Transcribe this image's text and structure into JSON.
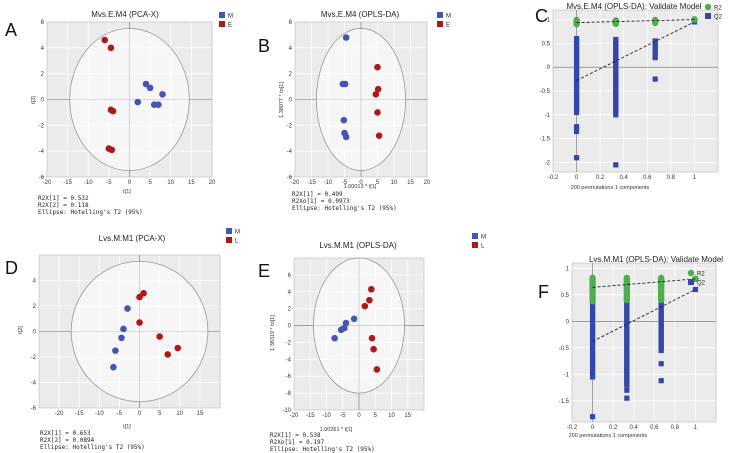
{
  "colors": {
    "blue": "#4355b8",
    "red": "#b01818",
    "green": "#4cae4c",
    "dark_blue": "#3446a8",
    "plot_bg": "#ebebeb",
    "grid": "#ffffff"
  },
  "chart_data": [
    {
      "id": "A",
      "letter": "A",
      "type": "scatter",
      "subtype": "score",
      "title": "Mvs.E.M4 (PCA-X)",
      "xlabel": "t[1]",
      "ylabel": "t[2]",
      "xlim": [
        -20,
        20
      ],
      "ylim": [
        -6,
        6
      ],
      "xticks": [
        -20,
        -15,
        -10,
        -5,
        0,
        5,
        10,
        15,
        20
      ],
      "yticks": [
        -6,
        -4,
        -2,
        0,
        2,
        4,
        6
      ],
      "ellipse": [
        14.5,
        5.5
      ],
      "legend": [
        "M",
        "E"
      ],
      "series": [
        {
          "name": "M",
          "color": "blue",
          "points": [
            [
              4,
              1.2
            ],
            [
              5,
              0.9
            ],
            [
              6,
              -0.4
            ],
            [
              7,
              -0.4
            ],
            [
              8,
              0.4
            ],
            [
              2,
              -0.2
            ]
          ]
        },
        {
          "name": "E",
          "color": "red",
          "points": [
            [
              -6,
              4.6
            ],
            [
              -4.5,
              4.0
            ],
            [
              -4.5,
              -0.8
            ],
            [
              -4,
              -0.9
            ],
            [
              -5,
              -3.8
            ],
            [
              -4.3,
              -3.9
            ]
          ]
        }
      ],
      "footer": [
        "R2X[1] = 0.532",
        "R2X[2] = 0.118",
        "Ellipse: Hotelling's T2 (95%)"
      ]
    },
    {
      "id": "B",
      "letter": "B",
      "type": "scatter",
      "subtype": "score",
      "title": "Mvs.E.M4 (OPLS-DA)",
      "xlabel": "1.00013 * t[1]",
      "ylabel": "1.38077 * to[1]",
      "xlim": [
        -20,
        20
      ],
      "ylim": [
        -6,
        6
      ],
      "xticks": [
        -20,
        -15,
        -10,
        -5,
        0,
        5,
        10,
        15,
        20
      ],
      "yticks": [
        -6,
        -4,
        -2,
        0,
        2,
        4,
        6
      ],
      "ellipse": [
        13.5,
        5.5
      ],
      "legend": [
        "M",
        "E"
      ],
      "series": [
        {
          "name": "M",
          "color": "blue",
          "points": [
            [
              -4.5,
              4.8
            ],
            [
              -5.5,
              1.2
            ],
            [
              -4.8,
              1.2
            ],
            [
              -5.2,
              -1.6
            ],
            [
              -5,
              -2.6
            ],
            [
              -4.5,
              -2.9
            ]
          ]
        },
        {
          "name": "E",
          "color": "red",
          "points": [
            [
              5,
              2.5
            ],
            [
              4.5,
              0.4
            ],
            [
              5.2,
              0.8
            ],
            [
              5,
              -1.0
            ],
            [
              5.5,
              -2.8
            ]
          ]
        }
      ],
      "footer": [
        "R2X[1] = 0.499",
        "R2Xo[1] = 0.0973",
        "Ellipse: Hotelling's T2 (95%)"
      ]
    },
    {
      "id": "C",
      "letter": "C",
      "type": "scatter",
      "subtype": "permutation",
      "title": "Mvs.E.M4 (OPLS-DA): Validate Model",
      "xlabel": "200 permutations 1 components",
      "xlim": [
        -0.2,
        1.2
      ],
      "ylim": [
        -2.2,
        1.2
      ],
      "xticks": [
        -0.2,
        0,
        0.2,
        0.4,
        0.6,
        0.8,
        1
      ],
      "yticks": [
        -2,
        -1.5,
        -1,
        -0.5,
        0,
        0.5,
        1
      ],
      "legend": [
        "R2",
        "Q2"
      ],
      "xs": [
        0,
        0.333,
        0.667
      ],
      "r2": {
        "intercept": 0.935,
        "end": 1.0,
        "cols": [
          [
            0.99,
            0.9
          ],
          [
            0.98,
            0.91
          ],
          [
            0.99,
            0.93
          ]
        ]
      },
      "q2": {
        "intercept": -0.28,
        "end": 0.95,
        "bars": [
          [
            0.6,
            -0.95
          ],
          [
            0.58,
            -1.0
          ],
          [
            0.55,
            0.2
          ]
        ],
        "outliers": [
          [
            0,
            -1.25
          ],
          [
            0,
            -1.35
          ],
          [
            0,
            -1.9
          ],
          [
            0.333,
            -2.05
          ],
          [
            0.667,
            -0.25
          ]
        ]
      }
    },
    {
      "id": "D",
      "letter": "D",
      "type": "scatter",
      "subtype": "score",
      "title": "Lvs.M.M1 (PCA-X)",
      "xlabel": "t[1]",
      "ylabel": "t[2]",
      "xlim": [
        -25,
        20
      ],
      "ylim": [
        -6,
        6
      ],
      "xticks": [
        -20,
        -15,
        -10,
        -5,
        0,
        5,
        10,
        15
      ],
      "yticks": [
        -6,
        -4,
        -2,
        0,
        2,
        4
      ],
      "ellipse": [
        17,
        5.5
      ],
      "legend": [
        "M",
        "L"
      ],
      "series": [
        {
          "name": "M",
          "color": "blue",
          "points": [
            [
              -3,
              1.8
            ],
            [
              -4,
              0.2
            ],
            [
              -4.5,
              -0.5
            ],
            [
              -6,
              -1.5
            ],
            [
              -6.5,
              -2.8
            ]
          ]
        },
        {
          "name": "L",
          "color": "red",
          "points": [
            [
              0,
              2.7
            ],
            [
              1,
              3.0
            ],
            [
              0,
              0.7
            ],
            [
              5,
              -0.4
            ],
            [
              7,
              -1.8
            ],
            [
              9.5,
              -1.3
            ]
          ]
        }
      ],
      "footer": [
        "R2X[1] = 0.653",
        "R2X[2] = 0.0894",
        "Ellipse: Hotelling's T2 (95%)"
      ]
    },
    {
      "id": "E",
      "letter": "E",
      "type": "scatter",
      "subtype": "score",
      "title": "Lvs.M.M1 (OPLS-DA)",
      "xlabel": "1.00261 * t[1]",
      "ylabel": "1.38319 * to[1]",
      "xlim": [
        -20,
        20
      ],
      "ylim": [
        -10,
        8
      ],
      "xticks": [
        -20,
        -15,
        -10,
        -5,
        0,
        5,
        10,
        15
      ],
      "yticks": [
        -10,
        -8,
        -6,
        -4,
        -2,
        0,
        2,
        4,
        6
      ],
      "ellipse": [
        14,
        8
      ],
      "legend": [
        "M",
        "L"
      ],
      "series": [
        {
          "name": "M",
          "color": "blue",
          "points": [
            [
              -7.5,
              -1.5
            ],
            [
              -5.5,
              -0.5
            ],
            [
              -4.5,
              -0.3
            ],
            [
              -4,
              0.3
            ],
            [
              -1.5,
              0.8
            ]
          ]
        },
        {
          "name": "L",
          "color": "red",
          "points": [
            [
              3.8,
              4.3
            ],
            [
              3.2,
              3.0
            ],
            [
              1.8,
              2.3
            ],
            [
              4,
              -1.5
            ],
            [
              4.5,
              -2.8
            ],
            [
              5.5,
              -5.2
            ]
          ]
        }
      ],
      "footer": [
        "R2X[1] = 0.538",
        "R2Xo[1] = 0.197",
        "Ellipse: Hotelling's T2 (95%)"
      ]
    },
    {
      "id": "F",
      "letter": "F",
      "type": "scatter",
      "subtype": "permutation",
      "title": "Lvs.M.M1 (OPLS-DA): Validate Model",
      "xlabel": "200 permutations 1 components",
      "xlim": [
        -0.2,
        1.2
      ],
      "ylim": [
        -1.9,
        1.1
      ],
      "xticks": [
        -0.2,
        0,
        0.2,
        0.4,
        0.6,
        0.8,
        1
      ],
      "yticks": [
        -1.5,
        -1,
        -0.5,
        0,
        0.5,
        1
      ],
      "legend": [
        "R2",
        "Q2"
      ],
      "xs": [
        0,
        0.333,
        0.667
      ],
      "r2": {
        "intercept": 0.64,
        "end": 0.8,
        "cols": [
          [
            0.82,
            0.38
          ],
          [
            0.82,
            0.4
          ],
          [
            0.82,
            0.4
          ]
        ]
      },
      "q2": {
        "intercept": -0.38,
        "end": 0.6,
        "bars": [
          [
            0.42,
            -1.05
          ],
          [
            0.38,
            -1.2
          ],
          [
            0.5,
            -0.55
          ]
        ],
        "outliers": [
          [
            0,
            -1.8
          ],
          [
            0.333,
            -1.45
          ],
          [
            0.333,
            -1.3
          ],
          [
            0.667,
            -1.12
          ],
          [
            0.667,
            -0.8
          ]
        ]
      }
    }
  ]
}
